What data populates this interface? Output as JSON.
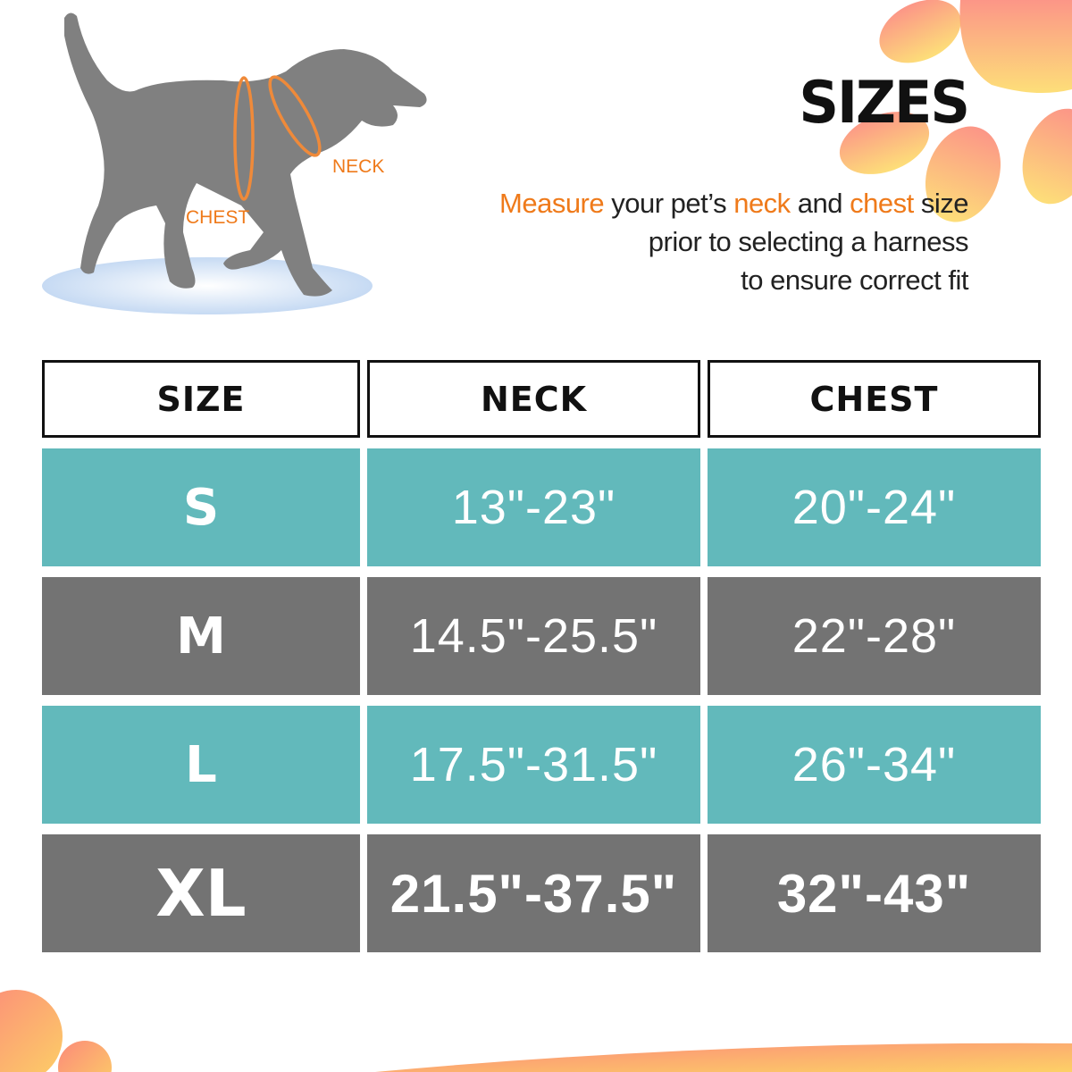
{
  "header": {
    "title": "SIZES",
    "intro": {
      "w1": "Measure",
      "w2": " your pet’s ",
      "w3": "neck",
      "w4": " and ",
      "w5": "chest",
      "w6": " size",
      "line2": "prior to selecting a harness",
      "line3": "to ensure correct fit"
    }
  },
  "illustration": {
    "neck_label": "NECK",
    "chest_label": "CHEST"
  },
  "table": {
    "columns": [
      "SIZE",
      "NECK",
      "CHEST"
    ],
    "rows": [
      {
        "size": "S",
        "neck": "13\"-23\"",
        "chest": "20\"-24\""
      },
      {
        "size": "M",
        "neck": "14.5\"-25.5\"",
        "chest": "22\"-28\""
      },
      {
        "size": "L",
        "neck": "17.5\"-31.5\"",
        "chest": "26\"-34\""
      },
      {
        "size": "XL",
        "neck": "21.5\"-37.5\"",
        "chest": "32\"-43\""
      }
    ]
  },
  "colors": {
    "accent": "#ef7a1a",
    "teal_row": "#62b9bb",
    "gray_row": "#737373",
    "dog": "#808080"
  }
}
